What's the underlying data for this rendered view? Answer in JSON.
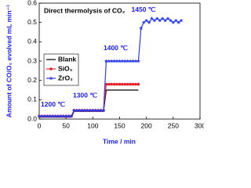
{
  "chart_data": {
    "type": "line",
    "title": "Direct thermolysis of CO₂",
    "x_label": "Time / min",
    "y_label": "Amount of CO/O₂ evolved mL min⁻¹",
    "x": [
      0,
      5,
      10,
      15,
      20,
      25,
      30,
      35,
      40,
      45,
      50,
      55,
      60,
      65,
      70,
      75,
      80,
      85,
      90,
      95,
      100,
      105,
      110,
      115,
      120,
      125,
      130,
      135,
      140,
      145,
      150,
      155,
      160,
      165,
      170,
      175,
      180,
      185,
      190,
      195,
      200,
      205,
      210,
      215,
      220,
      225,
      230,
      235,
      240,
      245,
      250,
      255,
      260,
      265
    ],
    "series": [
      {
        "name": "Blank",
        "color": "#000000",
        "marker": "none",
        "values": [
          0.01,
          0.01,
          0.01,
          0.01,
          0.01,
          0.01,
          0.01,
          0.01,
          0.01,
          0.01,
          0.01,
          0.01,
          0.01,
          0.04,
          0.04,
          0.04,
          0.04,
          0.04,
          0.04,
          0.04,
          0.04,
          0.04,
          0.04,
          0.04,
          0.04,
          0.15,
          0.15,
          0.15,
          0.15,
          0.15,
          0.15,
          0.15,
          0.15,
          0.15,
          0.15,
          0.15,
          0.15,
          0.15,
          null,
          null,
          null,
          null,
          null,
          null,
          null,
          null,
          null,
          null,
          null,
          null,
          null,
          null,
          null,
          null
        ]
      },
      {
        "name": "SiO₂",
        "color": "#e8202a",
        "marker": "circle",
        "values": [
          0.015,
          0.015,
          0.015,
          0.015,
          0.015,
          0.015,
          0.015,
          0.015,
          0.015,
          0.015,
          0.015,
          0.015,
          0.015,
          0.045,
          0.045,
          0.045,
          0.045,
          0.045,
          0.045,
          0.045,
          0.045,
          0.045,
          0.045,
          0.045,
          0.045,
          0.18,
          0.18,
          0.18,
          0.18,
          0.18,
          0.18,
          0.18,
          0.18,
          0.18,
          0.18,
          0.18,
          0.18,
          0.18,
          null,
          null,
          null,
          null,
          null,
          null,
          null,
          null,
          null,
          null,
          null,
          null,
          null,
          null,
          null,
          null
        ]
      },
      {
        "name": "ZrO₂",
        "color": "#2a3cf0",
        "marker": "star",
        "values": [
          0.015,
          0.015,
          0.015,
          0.015,
          0.015,
          0.015,
          0.015,
          0.015,
          0.015,
          0.015,
          0.015,
          0.015,
          0.015,
          0.045,
          0.045,
          0.045,
          0.045,
          0.045,
          0.045,
          0.045,
          0.045,
          0.045,
          0.045,
          0.045,
          0.045,
          0.3,
          0.3,
          0.3,
          0.3,
          0.3,
          0.3,
          0.3,
          0.3,
          0.3,
          0.3,
          0.3,
          0.3,
          0.3,
          0.47,
          0.5,
          0.51,
          0.5,
          0.52,
          0.51,
          0.52,
          0.51,
          0.52,
          0.51,
          0.52,
          0.51,
          0.5,
          0.51,
          0.5,
          0.51
        ]
      }
    ],
    "annotations": [
      "1200 ℃",
      "1300 ℃",
      "1400 ℃",
      "1450 ℃"
    ],
    "xlim": [
      0,
      300
    ],
    "xticks": [
      0,
      50,
      100,
      150,
      200,
      250,
      300
    ],
    "ylim": [
      0,
      0.6
    ],
    "yticks": [
      {
        "value": 0,
        "label": "0.0"
      },
      0.1,
      0.2,
      0.3,
      0.4,
      0.5,
      0.6
    ],
    "legend": "upper left"
  }
}
